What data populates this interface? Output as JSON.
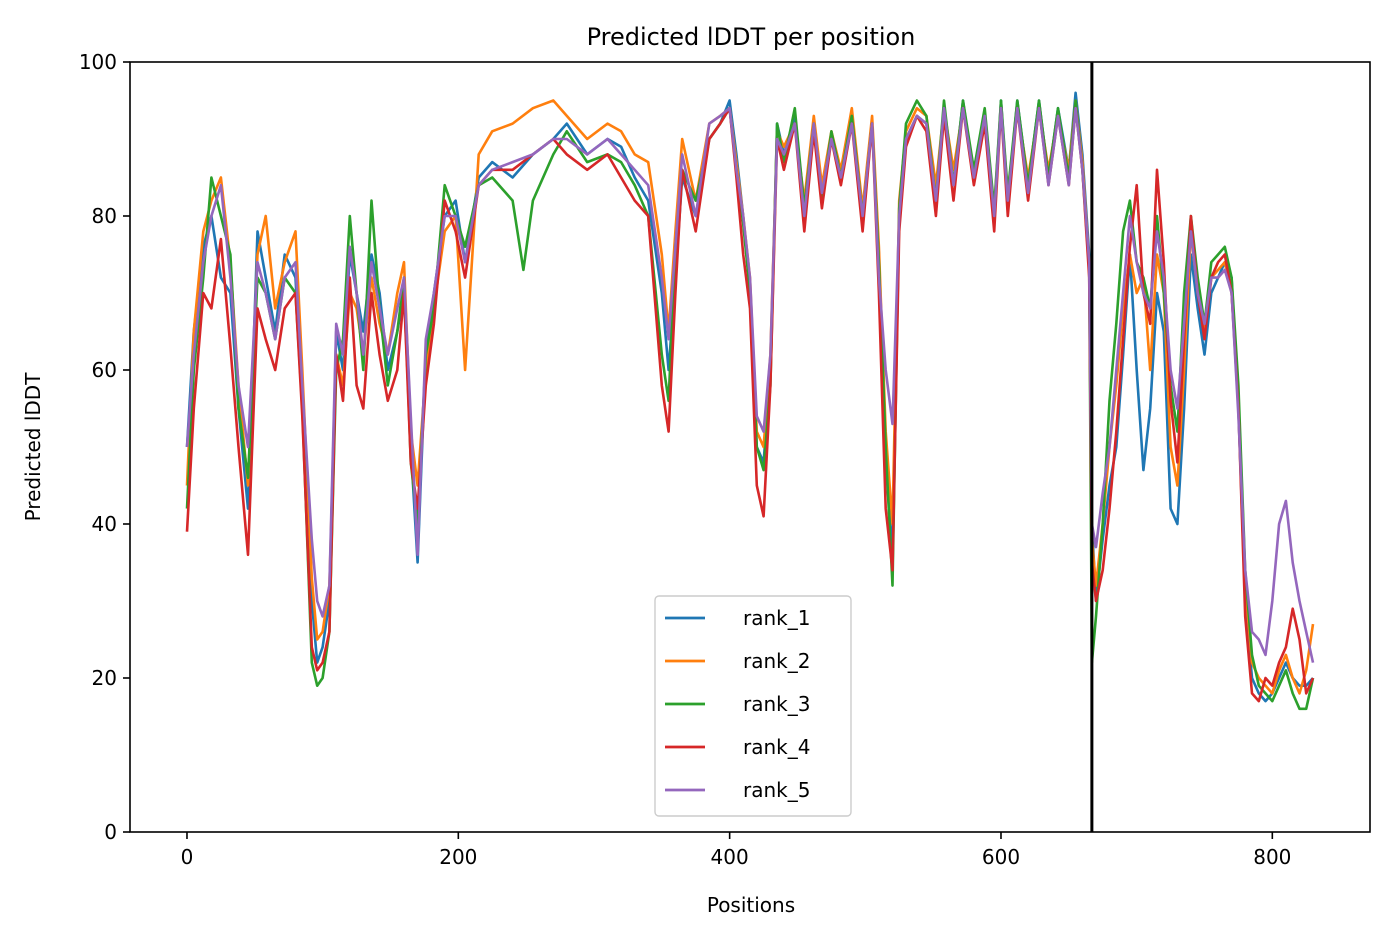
{
  "chart_data": {
    "type": "line",
    "title": "Predicted lDDT per position",
    "xlabel": "Positions",
    "ylabel": "Predicted lDDT",
    "xlim": [
      -42,
      872
    ],
    "ylim": [
      0,
      100
    ],
    "xticks": [
      0,
      200,
      400,
      600,
      800
    ],
    "yticks": [
      0,
      20,
      40,
      60,
      80,
      100
    ],
    "grid": false,
    "legend_position": "lower-center",
    "vline_x": 667,
    "vline_color": "#000000",
    "series": [
      {
        "name": "rank_1",
        "color": "#1f77b4",
        "x": [
          0,
          5,
          12,
          18,
          25,
          32,
          38,
          45,
          52,
          58,
          65,
          72,
          80,
          85,
          92,
          96,
          100,
          105,
          110,
          115,
          120,
          125,
          130,
          136,
          142,
          148,
          155,
          160,
          165,
          170,
          176,
          182,
          190,
          198,
          205,
          215,
          225,
          240,
          255,
          270,
          280,
          295,
          310,
          320,
          330,
          340,
          350,
          355,
          360,
          365,
          375,
          385,
          393,
          400,
          405,
          410,
          415,
          420,
          425,
          430,
          435,
          440,
          448,
          455,
          462,
          468,
          475,
          482,
          490,
          498,
          505,
          510,
          515,
          520,
          525,
          530,
          538,
          545,
          552,
          558,
          565,
          572,
          580,
          588,
          595,
          600,
          605,
          612,
          620,
          628,
          635,
          642,
          650,
          655,
          660,
          665,
          667,
          670,
          675,
          680,
          685,
          690,
          695,
          700,
          705,
          710,
          715,
          720,
          725,
          730,
          735,
          740,
          745,
          750,
          755,
          760,
          765,
          770,
          775,
          780,
          785,
          790,
          795,
          800,
          805,
          810,
          815,
          820,
          825,
          830
        ],
        "y": [
          50,
          65,
          76,
          80,
          72,
          70,
          55,
          42,
          78,
          72,
          65,
          75,
          72,
          55,
          30,
          22,
          24,
          30,
          65,
          60,
          75,
          70,
          65,
          75,
          70,
          60,
          65,
          70,
          50,
          35,
          62,
          70,
          80,
          82,
          74,
          85,
          87,
          85,
          88,
          90,
          92,
          88,
          90,
          89,
          85,
          82,
          70,
          60,
          72,
          85,
          80,
          90,
          92,
          95,
          88,
          80,
          70,
          50,
          48,
          60,
          92,
          88,
          93,
          80,
          92,
          83,
          90,
          85,
          93,
          80,
          92,
          75,
          48,
          36,
          80,
          90,
          93,
          92,
          82,
          94,
          84,
          95,
          85,
          93,
          80,
          95,
          82,
          95,
          84,
          95,
          85,
          94,
          86,
          96,
          88,
          75,
          40,
          30,
          38,
          45,
          50,
          62,
          75,
          60,
          47,
          55,
          70,
          65,
          42,
          40,
          55,
          75,
          68,
          62,
          70,
          72,
          74,
          72,
          55,
          30,
          20,
          18,
          17,
          18,
          20,
          22,
          20,
          19,
          19,
          20
        ]
      },
      {
        "name": "rank_2",
        "color": "#ff7f0e",
        "x": [
          0,
          5,
          12,
          18,
          25,
          32,
          38,
          45,
          52,
          58,
          65,
          72,
          80,
          85,
          92,
          96,
          100,
          105,
          110,
          115,
          120,
          125,
          130,
          136,
          142,
          148,
          155,
          160,
          165,
          170,
          176,
          182,
          190,
          198,
          205,
          215,
          225,
          240,
          255,
          270,
          280,
          295,
          310,
          320,
          330,
          340,
          350,
          355,
          360,
          365,
          375,
          385,
          393,
          400,
          405,
          410,
          415,
          420,
          425,
          430,
          435,
          440,
          448,
          455,
          462,
          468,
          475,
          482,
          490,
          498,
          505,
          510,
          515,
          520,
          525,
          530,
          538,
          545,
          552,
          558,
          565,
          572,
          580,
          588,
          595,
          600,
          605,
          612,
          620,
          628,
          635,
          642,
          650,
          655,
          660,
          665,
          667,
          670,
          675,
          680,
          685,
          690,
          695,
          700,
          705,
          710,
          715,
          720,
          725,
          730,
          735,
          740,
          745,
          750,
          755,
          760,
          765,
          770,
          775,
          780,
          785,
          790,
          795,
          800,
          805,
          810,
          815,
          820,
          825,
          830
        ],
        "y": [
          45,
          65,
          78,
          82,
          85,
          74,
          58,
          45,
          75,
          80,
          68,
          74,
          78,
          60,
          33,
          25,
          26,
          32,
          62,
          58,
          70,
          68,
          62,
          72,
          66,
          62,
          70,
          74,
          52,
          45,
          60,
          68,
          78,
          80,
          60,
          88,
          91,
          92,
          94,
          95,
          93,
          90,
          92,
          91,
          88,
          87,
          75,
          65,
          78,
          90,
          82,
          92,
          93,
          94,
          87,
          80,
          72,
          52,
          50,
          62,
          91,
          89,
          92,
          82,
          93,
          84,
          91,
          86,
          94,
          81,
          93,
          76,
          52,
          40,
          82,
          91,
          94,
          93,
          84,
          94,
          86,
          94,
          86,
          92,
          81,
          94,
          83,
          94,
          85,
          94,
          86,
          93,
          86,
          95,
          87,
          74,
          38,
          32,
          40,
          50,
          58,
          68,
          75,
          70,
          72,
          60,
          75,
          70,
          50,
          45,
          60,
          78,
          70,
          65,
          72,
          73,
          74,
          70,
          56,
          32,
          22,
          20,
          19,
          18,
          21,
          23,
          20,
          18,
          21,
          27
        ]
      },
      {
        "name": "rank_3",
        "color": "#2ca02c",
        "x": [
          0,
          5,
          12,
          18,
          25,
          32,
          38,
          45,
          52,
          58,
          65,
          72,
          80,
          85,
          92,
          96,
          100,
          105,
          110,
          115,
          120,
          125,
          130,
          136,
          142,
          148,
          155,
          160,
          165,
          170,
          176,
          182,
          190,
          198,
          205,
          215,
          225,
          240,
          248,
          255,
          270,
          280,
          295,
          310,
          320,
          330,
          340,
          350,
          355,
          360,
          365,
          375,
          385,
          393,
          400,
          405,
          410,
          415,
          420,
          425,
          430,
          435,
          440,
          448,
          455,
          462,
          468,
          475,
          482,
          490,
          498,
          505,
          510,
          515,
          520,
          525,
          530,
          538,
          545,
          552,
          558,
          565,
          572,
          580,
          588,
          595,
          600,
          605,
          612,
          620,
          628,
          635,
          642,
          650,
          655,
          660,
          665,
          667,
          670,
          675,
          680,
          685,
          690,
          695,
          700,
          705,
          710,
          715,
          720,
          725,
          730,
          735,
          740,
          745,
          750,
          755,
          760,
          765,
          770,
          775,
          780,
          785,
          790,
          795,
          800,
          805,
          810,
          815,
          820,
          825,
          830
        ],
        "y": [
          42,
          60,
          72,
          85,
          80,
          75,
          55,
          46,
          72,
          70,
          64,
          72,
          70,
          55,
          22,
          19,
          20,
          26,
          60,
          64,
          80,
          70,
          60,
          82,
          68,
          58,
          65,
          72,
          48,
          40,
          62,
          68,
          84,
          80,
          76,
          84,
          85,
          82,
          73,
          82,
          88,
          91,
          87,
          88,
          87,
          84,
          80,
          62,
          56,
          76,
          86,
          82,
          90,
          92,
          94,
          86,
          79,
          70,
          50,
          47,
          58,
          92,
          87,
          94,
          81,
          92,
          82,
          91,
          85,
          93,
          80,
          92,
          74,
          50,
          32,
          81,
          92,
          95,
          93,
          82,
          95,
          84,
          95,
          86,
          94,
          81,
          95,
          83,
          95,
          84,
          95,
          85,
          94,
          85,
          95,
          86,
          73,
          22,
          28,
          40,
          56,
          66,
          78,
          82,
          74,
          72,
          68,
          80,
          70,
          58,
          52,
          70,
          80,
          72,
          66,
          74,
          75,
          76,
          72,
          58,
          34,
          23,
          19,
          18,
          17,
          19,
          21,
          18,
          16,
          16,
          20
        ]
      },
      {
        "name": "rank_4",
        "color": "#d62728",
        "x": [
          0,
          5,
          12,
          18,
          25,
          32,
          38,
          45,
          52,
          58,
          65,
          72,
          80,
          85,
          92,
          96,
          100,
          105,
          110,
          115,
          120,
          125,
          130,
          136,
          142,
          148,
          155,
          160,
          165,
          170,
          176,
          182,
          190,
          198,
          205,
          215,
          225,
          240,
          255,
          270,
          280,
          295,
          310,
          320,
          330,
          340,
          350,
          355,
          360,
          365,
          375,
          385,
          393,
          400,
          405,
          410,
          415,
          420,
          425,
          430,
          435,
          440,
          448,
          455,
          462,
          468,
          475,
          482,
          490,
          498,
          505,
          510,
          515,
          520,
          525,
          530,
          538,
          545,
          552,
          558,
          565,
          572,
          580,
          588,
          595,
          600,
          605,
          612,
          620,
          628,
          635,
          642,
          650,
          655,
          660,
          665,
          667,
          670,
          675,
          680,
          685,
          690,
          695,
          700,
          705,
          710,
          715,
          720,
          725,
          730,
          735,
          740,
          745,
          750,
          755,
          760,
          765,
          770,
          775,
          780,
          785,
          790,
          795,
          800,
          805,
          810,
          815,
          820,
          825,
          830
        ],
        "y": [
          39,
          55,
          70,
          68,
          77,
          63,
          50,
          36,
          68,
          64,
          60,
          68,
          70,
          54,
          24,
          21,
          22,
          26,
          62,
          56,
          72,
          58,
          55,
          70,
          62,
          56,
          60,
          70,
          48,
          42,
          58,
          66,
          82,
          78,
          72,
          84,
          86,
          86,
          88,
          90,
          88,
          86,
          88,
          85,
          82,
          80,
          58,
          52,
          70,
          86,
          78,
          90,
          92,
          94,
          85,
          75,
          68,
          45,
          41,
          58,
          90,
          86,
          92,
          78,
          91,
          81,
          90,
          84,
          92,
          78,
          92,
          70,
          42,
          34,
          78,
          89,
          93,
          91,
          80,
          93,
          82,
          94,
          84,
          92,
          78,
          94,
          80,
          94,
          82,
          94,
          84,
          93,
          84,
          94,
          86,
          72,
          35,
          30,
          34,
          42,
          52,
          64,
          76,
          84,
          70,
          66,
          86,
          74,
          56,
          48,
          64,
          80,
          70,
          64,
          72,
          74,
          75,
          70,
          55,
          28,
          18,
          17,
          20,
          19,
          22,
          24,
          29,
          25,
          18,
          20
        ]
      },
      {
        "name": "rank_5",
        "color": "#9467bd",
        "x": [
          0,
          5,
          12,
          18,
          25,
          32,
          38,
          45,
          52,
          58,
          65,
          72,
          80,
          85,
          92,
          96,
          100,
          105,
          110,
          115,
          120,
          125,
          130,
          136,
          142,
          148,
          155,
          160,
          165,
          170,
          176,
          182,
          190,
          198,
          205,
          215,
          225,
          240,
          255,
          270,
          280,
          295,
          310,
          320,
          330,
          340,
          350,
          355,
          360,
          365,
          375,
          385,
          393,
          400,
          405,
          410,
          415,
          420,
          425,
          430,
          435,
          440,
          448,
          455,
          462,
          468,
          475,
          482,
          490,
          498,
          505,
          510,
          515,
          520,
          525,
          530,
          538,
          545,
          552,
          558,
          565,
          572,
          580,
          588,
          595,
          600,
          605,
          612,
          620,
          628,
          635,
          642,
          650,
          655,
          660,
          665,
          667,
          670,
          675,
          680,
          685,
          690,
          695,
          700,
          705,
          710,
          715,
          720,
          725,
          730,
          735,
          740,
          745,
          750,
          755,
          760,
          765,
          770,
          775,
          780,
          785,
          790,
          795,
          800,
          805,
          810,
          815,
          820,
          825,
          830
        ],
        "y": [
          50,
          62,
          74,
          80,
          84,
          72,
          58,
          50,
          74,
          70,
          64,
          72,
          74,
          58,
          38,
          30,
          28,
          32,
          66,
          62,
          76,
          70,
          62,
          74,
          68,
          62,
          68,
          72,
          54,
          36,
          64,
          70,
          80,
          80,
          74,
          84,
          86,
          87,
          88,
          90,
          90,
          88,
          90,
          88,
          86,
          84,
          72,
          64,
          76,
          88,
          80,
          92,
          93,
          94,
          86,
          80,
          72,
          54,
          52,
          62,
          90,
          88,
          92,
          80,
          92,
          83,
          90,
          85,
          92,
          80,
          92,
          72,
          60,
          53,
          80,
          90,
          93,
          92,
          82,
          94,
          84,
          94,
          85,
          93,
          80,
          94,
          82,
          94,
          83,
          94,
          84,
          93,
          84,
          94,
          86,
          74,
          40,
          37,
          44,
          50,
          60,
          70,
          80,
          74,
          70,
          68,
          78,
          72,
          60,
          55,
          66,
          78,
          70,
          66,
          72,
          72,
          73,
          70,
          54,
          34,
          26,
          25,
          23,
          30,
          40,
          43,
          35,
          30,
          26,
          22
        ]
      }
    ]
  }
}
